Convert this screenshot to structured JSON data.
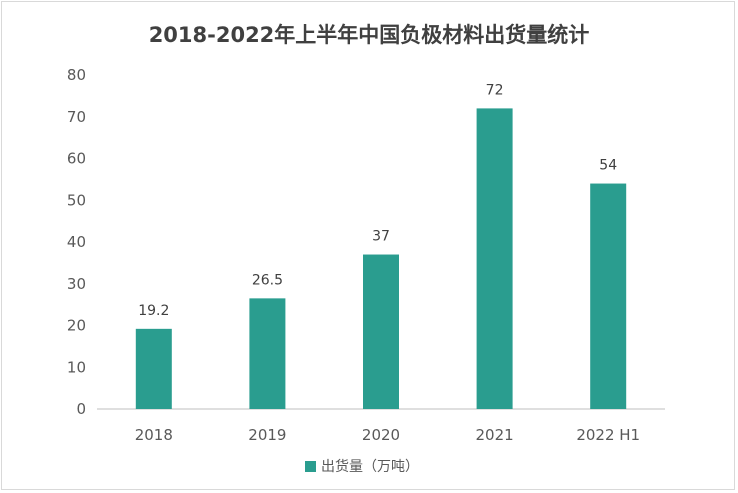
{
  "chart_data": {
    "type": "bar",
    "title": "2018-2022年上半年中国负极材料出货量统计",
    "xlabel": "",
    "ylabel": "",
    "categories": [
      "2018",
      "2019",
      "2020",
      "2021",
      "2022 H1"
    ],
    "series": [
      {
        "name": "出货量（万吨）",
        "values": [
          19.2,
          26.5,
          37,
          72,
          54
        ],
        "color": "#2a9d8f"
      }
    ],
    "data_labels": [
      "19.2",
      "26.5",
      "37",
      "72",
      "54"
    ],
    "ylim": [
      0,
      80
    ],
    "yticks": [
      "0",
      "10",
      "20",
      "30",
      "40",
      "50",
      "60",
      "70",
      "80"
    ],
    "grid": false,
    "legend_position": "bottom"
  }
}
